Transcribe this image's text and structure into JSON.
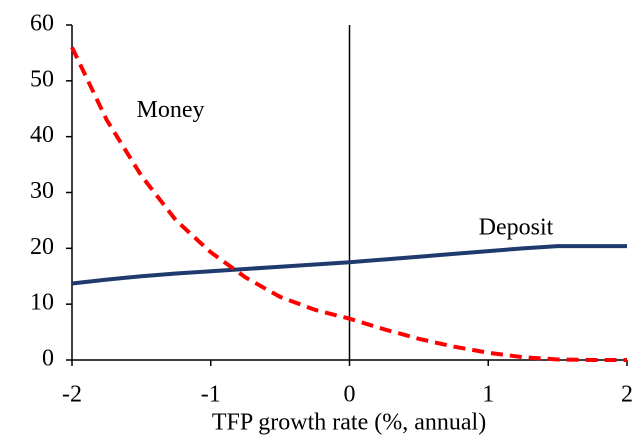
{
  "chart_data": {
    "type": "line",
    "x_label": "TFP growth rate (%, annual)",
    "x": [
      -2,
      -1.75,
      -1.5,
      -1.25,
      -1,
      -0.75,
      -0.5,
      -0.25,
      0,
      0.25,
      0.5,
      0.75,
      1,
      1.25,
      1.5,
      1.75,
      2
    ],
    "series": [
      {
        "name": "Deposit",
        "color": "#1f3b6e",
        "dash": false,
        "values": [
          13.7,
          14.4,
          15.0,
          15.5,
          15.9,
          16.3,
          16.7,
          17.1,
          17.5,
          18.0,
          18.5,
          19.0,
          19.5,
          20.0,
          20.4,
          20.4,
          20.4
        ]
      },
      {
        "name": "Money",
        "color": "#ff0000",
        "dash": true,
        "values": [
          56,
          43,
          33,
          25,
          19.3,
          14.8,
          11.3,
          9.0,
          7.4,
          5.5,
          3.8,
          2.4,
          1.3,
          0.5,
          0.1,
          0,
          0
        ]
      }
    ],
    "xlim": [
      -2,
      2
    ],
    "xticks": [
      -2,
      -1,
      0,
      1,
      2
    ],
    "ylim": [
      0,
      60
    ],
    "yticks": [
      0,
      10,
      20,
      30,
      40,
      50,
      60
    ]
  }
}
